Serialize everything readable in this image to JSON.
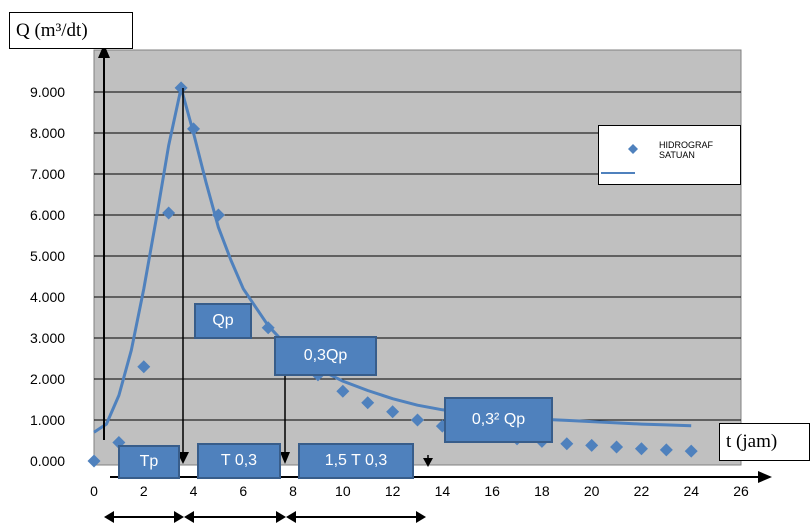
{
  "chart_data": {
    "type": "scatter",
    "xlabel": "t (jam)",
    "ylabel": "Q (m³/dt)",
    "xlim": [
      0,
      26
    ],
    "ylim": [
      0,
      10000
    ],
    "x_ticks": [
      "0",
      "2",
      "4",
      "6",
      "8",
      "10",
      "12",
      "14",
      "16",
      "18",
      "20",
      "22",
      "24",
      "26"
    ],
    "y_ticks": [
      "0.000",
      "1.000",
      "2.000",
      "3.000",
      "4.000",
      "5.000",
      "6.000",
      "7.000",
      "8.000",
      "9.000"
    ],
    "series": [
      {
        "name": "HIDROGRAF SATUAN",
        "marker": "diamond",
        "color": "#4f81bd",
        "x": [
          0,
          1,
          2,
          3,
          3.5,
          4,
          5,
          7,
          8,
          9,
          10,
          11,
          12,
          13,
          14,
          15,
          16,
          17,
          18,
          19,
          20,
          21,
          22,
          23,
          24
        ],
        "y": [
          0,
          450,
          2300,
          6050,
          9100,
          8100,
          6000,
          3250,
          2550,
          2100,
          1700,
          1420,
          1200,
          1000,
          850,
          700,
          600,
          540,
          480,
          420,
          380,
          340,
          300,
          270,
          240
        ]
      },
      {
        "name": "",
        "style": "line",
        "color": "#4f81bd",
        "x": [
          0,
          0.5,
          1,
          1.5,
          2,
          2.5,
          3,
          3.5,
          4,
          4.5,
          5,
          5.5,
          6,
          7,
          8,
          9,
          10,
          11,
          12,
          13,
          14,
          15,
          16,
          17,
          18,
          19,
          20,
          21,
          22,
          23,
          24
        ],
        "y": [
          700,
          900,
          1600,
          2700,
          4200,
          5900,
          7700,
          9100,
          8000,
          6800,
          5700,
          4900,
          4200,
          3300,
          2650,
          2250,
          1950,
          1720,
          1520,
          1360,
          1250,
          1170,
          1110,
          1060,
          1020,
          990,
          960,
          930,
          900,
          880,
          860
        ]
      }
    ],
    "annotations": [
      "Tp",
      "T 0,3",
      "1,5 T 0,3",
      "Qp",
      "0,3Qp",
      "0,3² Qp"
    ],
    "legend_position": "right",
    "grid": true,
    "background": "#c0c0c0"
  }
}
